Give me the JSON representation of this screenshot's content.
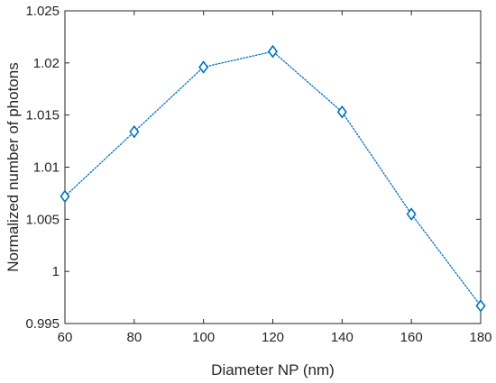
{
  "chart_data": {
    "type": "line",
    "title": "",
    "xlabel": "Diameter NP (nm)",
    "ylabel": "Normalized number of photons",
    "x": [
      60,
      80,
      100,
      120,
      140,
      160,
      180
    ],
    "series": [
      {
        "name": "",
        "values": [
          1.0072,
          1.0134,
          1.0196,
          1.0211,
          1.0153,
          1.0055,
          0.9967
        ],
        "color": "#0072BD",
        "line_style": "dotted",
        "marker": "diamond"
      }
    ],
    "xlim": [
      60,
      180
    ],
    "ylim": [
      0.995,
      1.025
    ],
    "xticks": [
      60,
      80,
      100,
      120,
      140,
      160,
      180
    ],
    "xtick_labels": [
      "60",
      "80",
      "100",
      "120",
      "140",
      "160",
      "180"
    ],
    "yticks": [
      0.995,
      1,
      1.005,
      1.01,
      1.015,
      1.02,
      1.025
    ],
    "ytick_labels": [
      "0.995",
      "1",
      "1.005",
      "1.01",
      "1.015",
      "1.02",
      "1.025"
    ],
    "grid": false,
    "box": true
  }
}
